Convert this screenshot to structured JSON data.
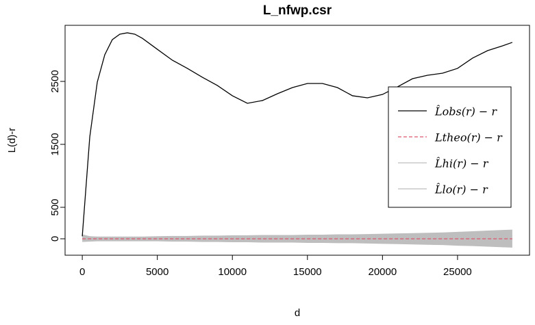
{
  "chart_data": {
    "type": "line",
    "title": "L_nfwp.csr",
    "xlabel": "d",
    "ylabel": "L(d)-r",
    "x": [
      0,
      500,
      1000,
      1500,
      2000,
      2500,
      3000,
      3500,
      4000,
      5000,
      6000,
      7000,
      8000,
      9000,
      10000,
      11000,
      12000,
      13000,
      14000,
      15000,
      16000,
      17000,
      18000,
      19000,
      20000,
      21000,
      22000,
      23000,
      24000,
      25000,
      26000,
      27000,
      28000,
      28650
    ],
    "series": [
      {
        "name": "L̂obs(r) − r",
        "color": "#000000",
        "style": "solid",
        "values": [
          40,
          1620,
          2490,
          2924,
          3163,
          3250,
          3272,
          3250,
          3185,
          3010,
          2837,
          2707,
          2565,
          2435,
          2272,
          2152,
          2196,
          2304,
          2402,
          2467,
          2467,
          2402,
          2272,
          2239,
          2293,
          2413,
          2543,
          2598,
          2630,
          2707,
          2870,
          2989,
          3065,
          3120
        ]
      },
      {
        "name": "Ltheo(r) − r",
        "color": "#df536b",
        "style": "dashed",
        "values": [
          0,
          0,
          0,
          0,
          0,
          0,
          0,
          0,
          0,
          0,
          0,
          0,
          0,
          0,
          0,
          0,
          0,
          0,
          0,
          0,
          0,
          0,
          0,
          0,
          0,
          0,
          0,
          0,
          0,
          0,
          0,
          0,
          0,
          0
        ]
      },
      {
        "name": "L̂hi(r) − r",
        "color": "#bebebe",
        "style": "envelope",
        "values": [
          70,
          40,
          35,
          35,
          35,
          35,
          35,
          35,
          35,
          40,
          45,
          45,
          50,
          50,
          55,
          55,
          60,
          60,
          60,
          65,
          65,
          70,
          70,
          75,
          80,
          85,
          90,
          95,
          100,
          110,
          120,
          130,
          140,
          145
        ]
      },
      {
        "name": "L̂lo(r) − r",
        "color": "#bebebe",
        "style": "envelope",
        "values": [
          -50,
          -45,
          -40,
          -40,
          -40,
          -40,
          -40,
          -40,
          -40,
          -40,
          -45,
          -45,
          -50,
          -50,
          -55,
          -55,
          -60,
          -60,
          -60,
          -65,
          -65,
          -70,
          -70,
          -75,
          -80,
          -85,
          -90,
          -95,
          -100,
          -110,
          -115,
          -125,
          -135,
          -140
        ]
      }
    ],
    "xlim": [
      -1146,
      29796
    ],
    "xticks": [
      0,
      5000,
      10000,
      15000,
      20000,
      25000
    ],
    "ylim": [
      -261,
      3391
    ],
    "yticks": [
      0,
      500,
      1500,
      2500
    ],
    "legend": "right"
  }
}
